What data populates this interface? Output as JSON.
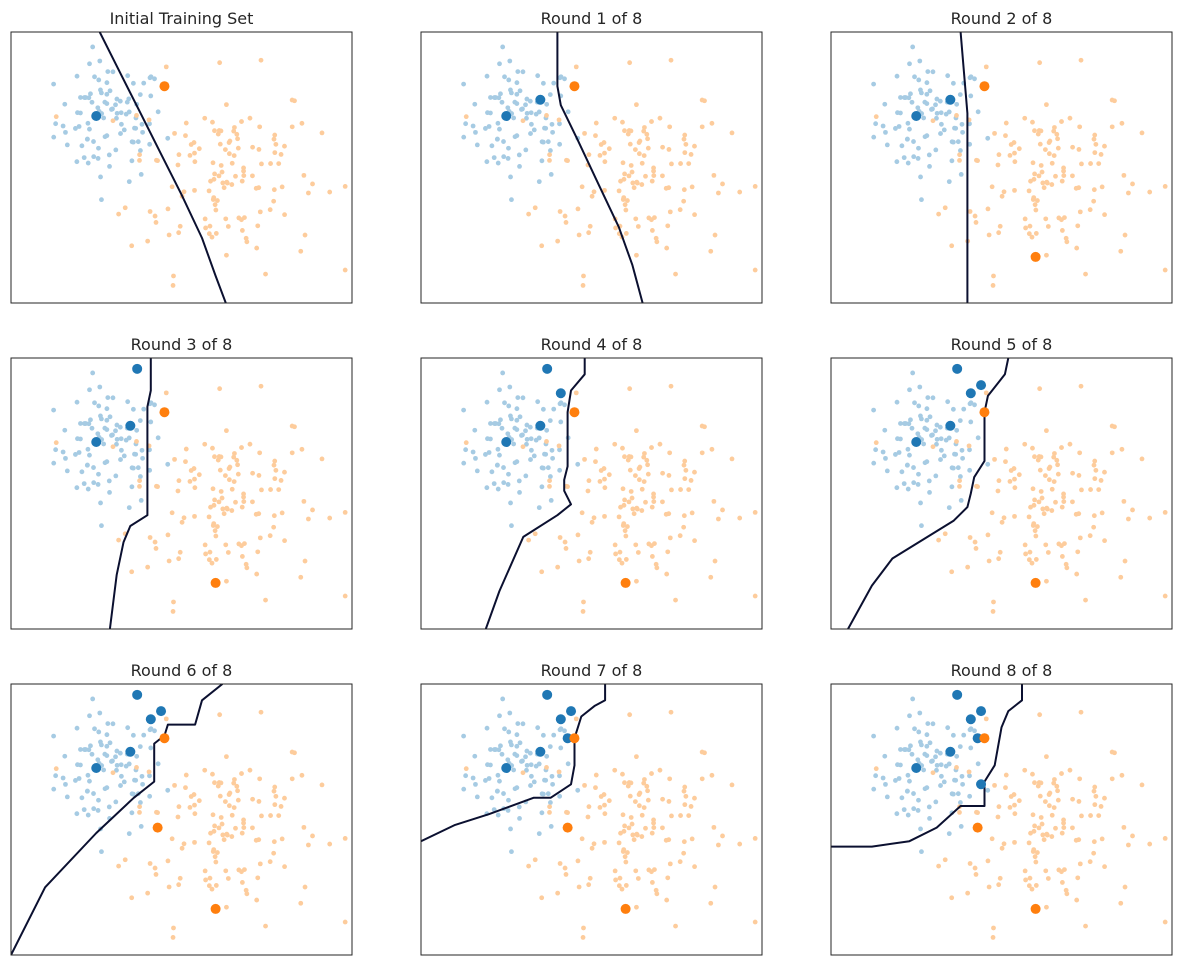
{
  "chart_data": [
    {
      "type": "scatter",
      "title": "Initial Training Set",
      "grid": false,
      "axes_visible": false,
      "xlim": [
        0,
        100
      ],
      "ylim": [
        0,
        100
      ],
      "colors": {
        "pool_blue": "#a6cbe3",
        "pool_orange": "#fdcc9c",
        "labeled_blue": "#1f77b4",
        "labeled_orange": "#ff7f0e",
        "boundary": "#0b1030"
      },
      "labeled_blue": [
        [
          25,
          69
        ]
      ],
      "labeled_orange": [
        [
          45,
          80
        ]
      ],
      "boundary": [
        [
          26,
          100
        ],
        [
          32,
          85
        ],
        [
          38,
          70
        ],
        [
          44,
          55
        ],
        [
          50,
          40
        ],
        [
          56,
          24
        ],
        [
          60,
          10
        ],
        [
          63,
          0
        ]
      ]
    },
    {
      "type": "scatter",
      "title": "Round 1 of 8",
      "grid": false,
      "axes_visible": false,
      "xlim": [
        0,
        100
      ],
      "ylim": [
        0,
        100
      ],
      "labeled_blue": [
        [
          25,
          69
        ],
        [
          35,
          75
        ]
      ],
      "labeled_orange": [
        [
          45,
          80
        ]
      ],
      "boundary": [
        [
          40,
          100
        ],
        [
          40,
          80
        ],
        [
          41,
          73
        ],
        [
          46,
          60
        ],
        [
          52,
          44
        ],
        [
          58,
          28
        ],
        [
          62,
          14
        ],
        [
          65,
          0
        ]
      ]
    },
    {
      "type": "scatter",
      "title": "Round 2 of 8",
      "grid": false,
      "axes_visible": false,
      "xlim": [
        0,
        100
      ],
      "ylim": [
        0,
        100
      ],
      "labeled_blue": [
        [
          25,
          69
        ],
        [
          35,
          75
        ]
      ],
      "labeled_orange": [
        [
          45,
          80
        ],
        [
          60,
          17
        ]
      ],
      "boundary": [
        [
          38,
          100
        ],
        [
          39,
          85
        ],
        [
          40,
          70
        ],
        [
          40,
          50
        ],
        [
          40,
          30
        ],
        [
          40,
          10
        ],
        [
          40,
          0
        ]
      ]
    },
    {
      "type": "scatter",
      "title": "Round 3 of 8",
      "grid": false,
      "axes_visible": false,
      "xlim": [
        0,
        100
      ],
      "ylim": [
        0,
        100
      ],
      "labeled_blue": [
        [
          25,
          69
        ],
        [
          35,
          75
        ],
        [
          37,
          96
        ]
      ],
      "labeled_orange": [
        [
          45,
          80
        ],
        [
          60,
          17
        ]
      ],
      "boundary": [
        [
          41,
          100
        ],
        [
          41,
          88
        ],
        [
          40,
          82
        ],
        [
          40,
          70
        ],
        [
          40,
          58
        ],
        [
          40,
          50
        ],
        [
          40,
          42
        ],
        [
          35,
          38
        ],
        [
          33,
          32
        ],
        [
          31,
          20
        ],
        [
          29,
          0
        ]
      ]
    },
    {
      "type": "scatter",
      "title": "Round 4 of 8",
      "grid": false,
      "axes_visible": false,
      "xlim": [
        0,
        100
      ],
      "ylim": [
        0,
        100
      ],
      "labeled_blue": [
        [
          25,
          69
        ],
        [
          35,
          75
        ],
        [
          37,
          96
        ],
        [
          41,
          87
        ]
      ],
      "labeled_orange": [
        [
          45,
          80
        ],
        [
          60,
          17
        ]
      ],
      "boundary": [
        [
          48,
          100
        ],
        [
          48,
          94
        ],
        [
          44,
          88
        ],
        [
          43,
          80
        ],
        [
          43,
          60
        ],
        [
          42,
          55
        ],
        [
          42,
          51
        ],
        [
          44,
          46
        ],
        [
          40,
          42
        ],
        [
          30,
          34
        ],
        [
          23,
          14
        ],
        [
          19,
          0
        ]
      ]
    },
    {
      "type": "scatter",
      "title": "Round 5 of 8",
      "grid": false,
      "axes_visible": false,
      "xlim": [
        0,
        100
      ],
      "ylim": [
        0,
        100
      ],
      "labeled_blue": [
        [
          25,
          69
        ],
        [
          35,
          75
        ],
        [
          37,
          96
        ],
        [
          41,
          87
        ],
        [
          44,
          90
        ]
      ],
      "labeled_orange": [
        [
          45,
          80
        ],
        [
          60,
          17
        ]
      ],
      "boundary": [
        [
          52,
          100
        ],
        [
          51,
          94
        ],
        [
          46,
          86
        ],
        [
          45,
          80
        ],
        [
          45,
          62
        ],
        [
          42,
          56
        ],
        [
          41,
          50
        ],
        [
          40,
          45
        ],
        [
          36,
          40
        ],
        [
          18,
          26
        ],
        [
          12,
          16
        ],
        [
          5,
          0
        ]
      ]
    },
    {
      "type": "scatter",
      "title": "Round 6 of 8",
      "grid": false,
      "axes_visible": false,
      "xlim": [
        0,
        100
      ],
      "ylim": [
        0,
        100
      ],
      "labeled_blue": [
        [
          25,
          69
        ],
        [
          35,
          75
        ],
        [
          37,
          96
        ],
        [
          41,
          87
        ],
        [
          44,
          90
        ]
      ],
      "labeled_orange": [
        [
          45,
          80
        ],
        [
          43,
          47
        ],
        [
          60,
          17
        ]
      ],
      "boundary": [
        [
          62,
          100
        ],
        [
          56,
          94
        ],
        [
          54,
          85
        ],
        [
          46,
          85
        ],
        [
          45,
          81
        ],
        [
          42,
          78
        ],
        [
          42,
          64
        ],
        [
          36,
          58
        ],
        [
          25,
          45
        ],
        [
          10,
          25
        ],
        [
          0,
          0
        ]
      ]
    },
    {
      "type": "scatter",
      "title": "Round 7 of 8",
      "grid": false,
      "axes_visible": false,
      "xlim": [
        0,
        100
      ],
      "ylim": [
        0,
        100
      ],
      "labeled_blue": [
        [
          25,
          69
        ],
        [
          35,
          75
        ],
        [
          37,
          96
        ],
        [
          41,
          87
        ],
        [
          44,
          90
        ],
        [
          43,
          80
        ]
      ],
      "labeled_orange": [
        [
          45,
          80
        ],
        [
          43,
          47
        ],
        [
          60,
          17
        ]
      ],
      "boundary": [
        [
          54,
          100
        ],
        [
          54,
          94
        ],
        [
          51,
          92
        ],
        [
          47,
          88
        ],
        [
          45,
          80
        ],
        [
          45,
          70
        ],
        [
          44,
          63
        ],
        [
          38,
          58
        ],
        [
          33,
          58
        ],
        [
          20,
          52
        ],
        [
          10,
          48
        ],
        [
          0,
          42
        ]
      ]
    },
    {
      "type": "scatter",
      "title": "Round 8 of 8",
      "grid": false,
      "axes_visible": false,
      "xlim": [
        0,
        100
      ],
      "ylim": [
        0,
        100
      ],
      "labeled_blue": [
        [
          25,
          69
        ],
        [
          35,
          75
        ],
        [
          37,
          96
        ],
        [
          41,
          87
        ],
        [
          44,
          90
        ],
        [
          43,
          80
        ],
        [
          44,
          63
        ]
      ],
      "labeled_orange": [
        [
          45,
          80
        ],
        [
          43,
          47
        ],
        [
          60,
          17
        ]
      ],
      "boundary": [
        [
          56,
          100
        ],
        [
          56,
          94
        ],
        [
          52,
          90
        ],
        [
          50,
          84
        ],
        [
          48,
          70
        ],
        [
          45,
          64
        ],
        [
          45,
          55
        ],
        [
          38,
          55
        ],
        [
          31,
          47
        ],
        [
          23,
          42
        ],
        [
          12,
          40
        ],
        [
          0,
          40
        ]
      ]
    }
  ]
}
